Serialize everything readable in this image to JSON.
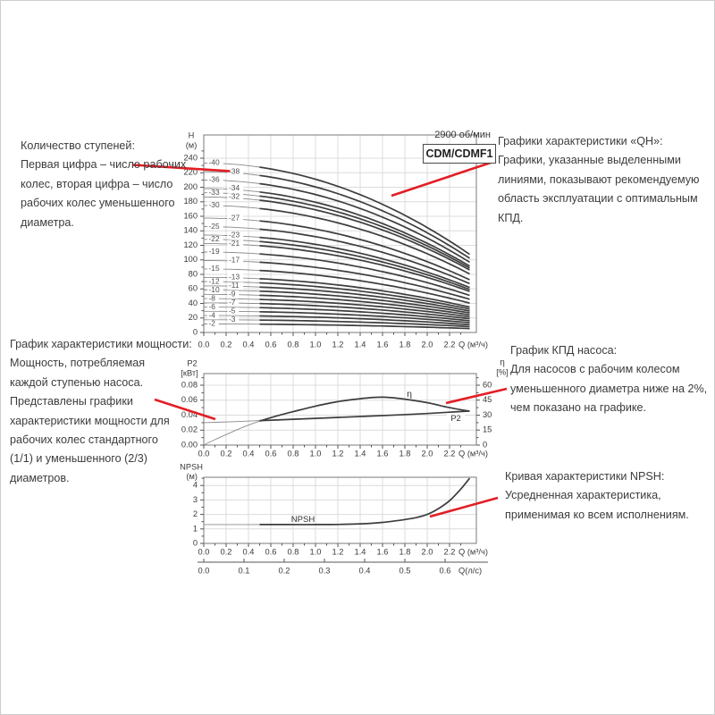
{
  "palette": {
    "red": "#e31e25",
    "curve_bold": "#3d3d3d",
    "curve_thin": "#8a8a8a",
    "grid": "#dcdcdc",
    "frame": "#7a7a7a",
    "tick": "#555555",
    "text": "#3c3c3c"
  },
  "header": {
    "speed": "2900 об/мин",
    "model": "CDM/CDMF1"
  },
  "notes": {
    "stages": {
      "title": "Количество ступеней:",
      "body": "Первая цифра – число рабочих колес, вторая цифра – число рабочих колес уменьшенного диаметра."
    },
    "qh": {
      "title": "Графики характеристики «QH»:",
      "body": "Графики, указанные выделенными линиями, показывают рекомендуемую область эксплуатации с оптимальным КПД."
    },
    "power": {
      "title": "График характеристики мощности:",
      "body": "Мощность, потребляемая каждой ступенью насоса. Представлены графики характеристики мощности для рабочих колес стандартного (1/1) и уменьшенного (2/3) диаметров."
    },
    "efficiency": {
      "title": "График КПД насоса:",
      "body": "Для насосов с рабочим колесом уменьшенного диаметра ниже на 2%, чем показано на графике."
    },
    "npsh": {
      "title": "Кривая характеристики NPSH:",
      "body": "Усредненная характеристика, применимая ко всем исполнениям."
    }
  },
  "chart_data": [
    {
      "id": "qh",
      "type": "line",
      "title": "CDM/CDMF1",
      "subtitle": "2900 об/мин",
      "xlabel": "Q (м³/ч)",
      "ylabel": [
        "H",
        "(м)"
      ],
      "x_ticks": [
        "0.0",
        "0.2",
        "0.4",
        "0.6",
        "0.8",
        "1.0",
        "1.2",
        "1.4",
        "1.6",
        "1.8",
        "2.0",
        "2.2"
      ],
      "y_ticks": [
        "0",
        "20",
        "40",
        "60",
        "80",
        "100",
        "120",
        "140",
        "160",
        "180",
        "200",
        "220",
        "240"
      ],
      "xlim": [
        0,
        2.4
      ],
      "ylim": [
        0,
        272
      ],
      "grid": true,
      "recommended_range_q": [
        0.5,
        2.38
      ],
      "curves": [
        {
          "label": "-40",
          "stages": 40,
          "h0": 233.2,
          "h_end": 107.6,
          "label_col": "left"
        },
        {
          "label": "-38",
          "stages": 38,
          "h0": 221.5,
          "h_end": 102.2,
          "label_col": "right"
        },
        {
          "label": "-36",
          "stages": 36,
          "h0": 209.9,
          "h_end": 96.8,
          "label_col": "left"
        },
        {
          "label": "-34",
          "stages": 34,
          "h0": 198.2,
          "h_end": 91.5,
          "label_col": "right"
        },
        {
          "label": "-33",
          "stages": 33,
          "h0": 192.4,
          "h_end": 88.8,
          "label_col": "left"
        },
        {
          "label": "-32",
          "stages": 32,
          "h0": 186.6,
          "h_end": 86.1,
          "label_col": "right"
        },
        {
          "label": "-30",
          "stages": 30,
          "h0": 174.9,
          "h_end": 80.7,
          "label_col": "left"
        },
        {
          "label": "-27",
          "stages": 27,
          "h0": 157.4,
          "h_end": 72.6,
          "label_col": "right"
        },
        {
          "label": "-25",
          "stages": 25,
          "h0": 145.8,
          "h_end": 67.3,
          "label_col": "left"
        },
        {
          "label": "-23",
          "stages": 23,
          "h0": 134.1,
          "h_end": 61.9,
          "label_col": "right"
        },
        {
          "label": "-22",
          "stages": 22,
          "h0": 128.3,
          "h_end": 59.2,
          "label_col": "left"
        },
        {
          "label": "-21",
          "stages": 21,
          "h0": 122.4,
          "h_end": 56.5,
          "label_col": "right"
        },
        {
          "label": "-19",
          "stages": 19,
          "h0": 110.8,
          "h_end": 51.1,
          "label_col": "left"
        },
        {
          "label": "-17",
          "stages": 17,
          "h0": 99.1,
          "h_end": 45.7,
          "label_col": "right"
        },
        {
          "label": "-15",
          "stages": 15,
          "h0": 87.5,
          "h_end": 40.4,
          "label_col": "left"
        },
        {
          "label": "-13",
          "stages": 13,
          "h0": 75.8,
          "h_end": 35.0,
          "label_col": "right"
        },
        {
          "label": "-12",
          "stages": 12,
          "h0": 70.0,
          "h_end": 32.3,
          "label_col": "left"
        },
        {
          "label": "-11",
          "stages": 11,
          "h0": 64.1,
          "h_end": 29.6,
          "label_col": "right"
        },
        {
          "label": "-10",
          "stages": 10,
          "h0": 58.3,
          "h_end": 26.9,
          "label_col": "left"
        },
        {
          "label": "-9",
          "stages": 9,
          "h0": 52.5,
          "h_end": 24.2,
          "label_col": "right"
        },
        {
          "label": "-8",
          "stages": 8,
          "h0": 46.6,
          "h_end": 21.5,
          "label_col": "left"
        },
        {
          "label": "-7",
          "stages": 7,
          "h0": 40.8,
          "h_end": 18.8,
          "label_col": "right"
        },
        {
          "label": "-6",
          "stages": 6,
          "h0": 35.0,
          "h_end": 16.1,
          "label_col": "left"
        },
        {
          "label": "-5",
          "stages": 5,
          "h0": 29.2,
          "h_end": 13.5,
          "label_col": "right"
        },
        {
          "label": "-4",
          "stages": 4,
          "h0": 23.3,
          "h_end": 10.8,
          "label_col": "left"
        },
        {
          "label": "-3",
          "stages": 3,
          "h0": 17.5,
          "h_end": 8.1,
          "label_col": "right"
        },
        {
          "label": "-2",
          "stages": 2,
          "h0": 11.7,
          "h_end": 5.4,
          "label_col": "left"
        }
      ]
    },
    {
      "id": "power-efficiency",
      "type": "line",
      "xlabel": "Q (м³/ч)",
      "x_ticks": [
        "0.0",
        "0.2",
        "0.4",
        "0.6",
        "0.8",
        "1.0",
        "1.2",
        "1.4",
        "1.6",
        "1.8",
        "2.0",
        "2.2"
      ],
      "y_left": {
        "label": [
          "P2",
          "[кВт]"
        ],
        "ticks": [
          "0.00",
          "0.02",
          "0.04",
          "0.06",
          "0.08"
        ],
        "lim": [
          0,
          0.0955
        ]
      },
      "y_right": {
        "label": [
          "η",
          "[%]"
        ],
        "ticks": [
          "0",
          "15",
          "30",
          "45",
          "60"
        ],
        "lim": [
          0,
          71.6
        ]
      },
      "series": [
        {
          "name": "η",
          "axis": "right",
          "x": [
            0,
            0.1,
            0.2,
            0.3,
            0.4,
            0.5,
            0.6,
            0.8,
            1.0,
            1.2,
            1.4,
            1.6,
            1.8,
            2.0,
            2.2,
            2.38
          ],
          "y": [
            0,
            5.5,
            10.5,
            15.5,
            20,
            24,
            27.5,
            33.5,
            39,
            43.5,
            46.5,
            48,
            46,
            42.5,
            37.5,
            34
          ]
        },
        {
          "name": "P2",
          "axis": "left",
          "x": [
            0,
            0.25,
            0.5,
            0.75,
            1.0,
            1.25,
            1.5,
            1.75,
            2.0,
            2.2,
            2.38
          ],
          "y": [
            0.03,
            0.0312,
            0.0327,
            0.0342,
            0.0357,
            0.0372,
            0.0388,
            0.0404,
            0.0422,
            0.044,
            0.0455
          ]
        }
      ]
    },
    {
      "id": "npsh",
      "type": "line",
      "xlabel": "Q (м³/ч)",
      "xlabel2": "Q(л/с)",
      "x_ticks": [
        "0.0",
        "0.2",
        "0.4",
        "0.6",
        "0.8",
        "1.0",
        "1.2",
        "1.4",
        "1.6",
        "1.8",
        "2.0",
        "2.2"
      ],
      "x_ticks2": [
        "0.0",
        "0.1",
        "0.2",
        "0.3",
        "0.4",
        "0.5",
        "0.6"
      ],
      "ylabel": [
        "NPSH",
        "(м)"
      ],
      "y_ticks": [
        "0",
        "1",
        "2",
        "3",
        "4"
      ],
      "ylim": [
        0,
        4.57
      ],
      "series": [
        {
          "name": "NPSH",
          "x": [
            0,
            0.25,
            0.5,
            0.75,
            1.0,
            1.2,
            1.4,
            1.6,
            1.8,
            1.9,
            2.0,
            2.1,
            2.2,
            2.3,
            2.38
          ],
          "y": [
            1.3,
            1.3,
            1.3,
            1.3,
            1.3,
            1.31,
            1.35,
            1.45,
            1.65,
            1.78,
            2.0,
            2.4,
            2.95,
            3.75,
            4.5
          ]
        }
      ]
    }
  ]
}
